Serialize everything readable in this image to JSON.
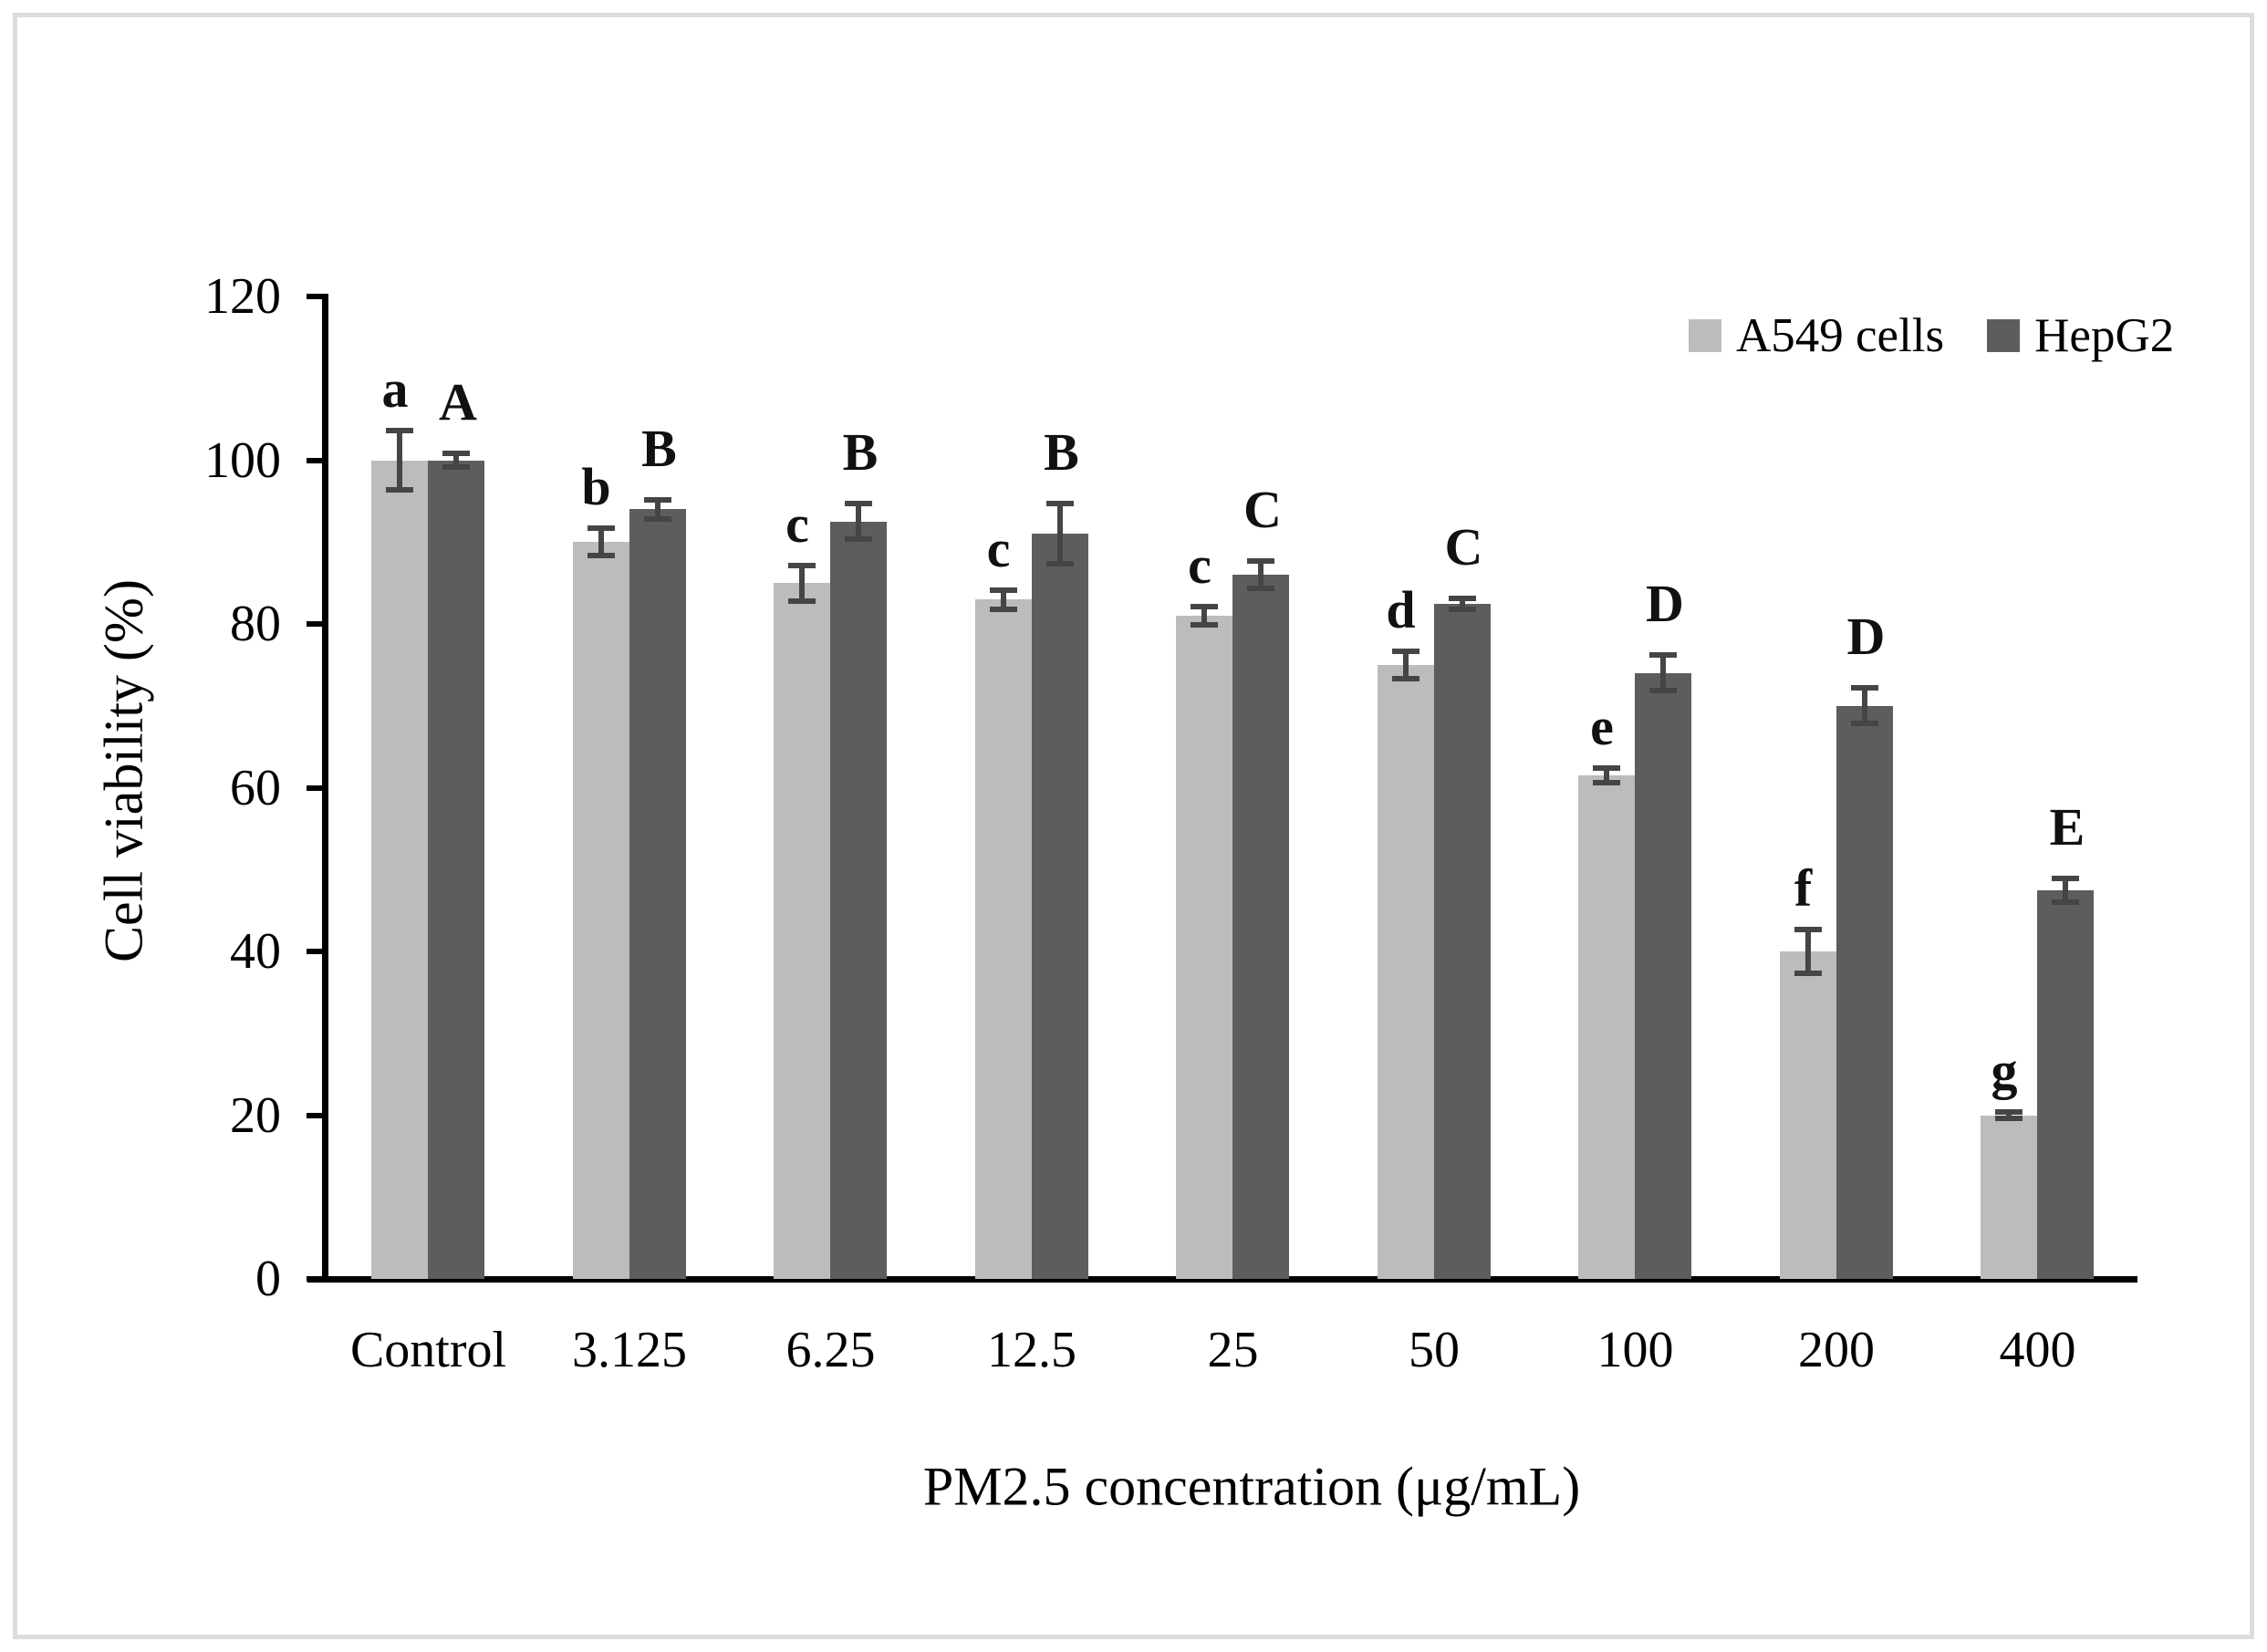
{
  "figure": {
    "background": "#ffffff",
    "border_color": "#dcdcdc"
  },
  "chart_data": {
    "type": "bar",
    "title": "",
    "xlabel": "PM2.5 concentration (μg/mL)",
    "ylabel": "Cell viability (%)",
    "ylim": [
      0,
      120
    ],
    "yticks": [
      0,
      20,
      40,
      60,
      80,
      100,
      120
    ],
    "categories": [
      "Control",
      "3.125",
      "6.25",
      "12.5",
      "25",
      "50",
      "100",
      "200",
      "400"
    ],
    "series": [
      {
        "name": "A549 cells",
        "color": "#bcbcbc",
        "values": [
          100,
          90,
          85,
          83,
          81,
          75,
          61.5,
          40,
          20
        ],
        "errors": [
          4,
          2,
          2.5,
          1.5,
          1.5,
          2,
          1.2,
          3,
          0.7
        ],
        "sig_labels": [
          "a",
          "b",
          "c",
          "c",
          "c",
          "d",
          "e",
          "f",
          "g"
        ]
      },
      {
        "name": "HepG2",
        "color": "#5d5d5d",
        "values": [
          100,
          94,
          92.5,
          91,
          86,
          82.5,
          74,
          70,
          47.5
        ],
        "errors": [
          1.2,
          1.5,
          2.5,
          4,
          2,
          1,
          2.5,
          2.5,
          1.8
        ],
        "sig_labels": [
          "A",
          "B",
          "B",
          "B",
          "C",
          "C",
          "D",
          "D",
          "E"
        ]
      }
    ],
    "error_bar_color": "#454545",
    "axis_color": "#000000",
    "sig_label_color": "#111111",
    "legend_position": "top-right",
    "grid": false
  }
}
